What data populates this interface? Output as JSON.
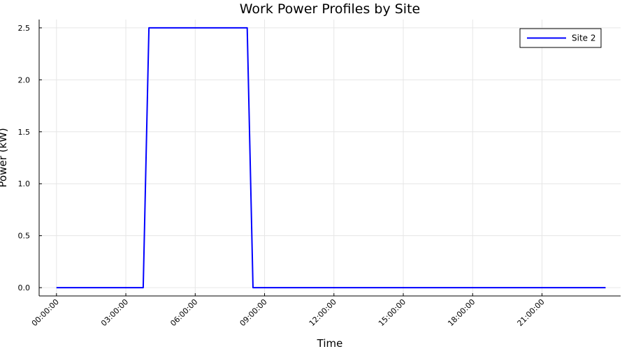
{
  "chart_data": {
    "type": "line",
    "title": "Work Power Profiles by Site",
    "xlabel": "Time",
    "ylabel": "Power (kW)",
    "xlim_hours": [
      -0.75,
      24.4
    ],
    "ylim": [
      -0.08,
      2.58
    ],
    "x_ticks": [
      {
        "hour": 0,
        "label": "00:00:00"
      },
      {
        "hour": 3,
        "label": "03:00:00"
      },
      {
        "hour": 6,
        "label": "06:00:00"
      },
      {
        "hour": 9,
        "label": "09:00:00"
      },
      {
        "hour": 12,
        "label": "12:00:00"
      },
      {
        "hour": 15,
        "label": "15:00:00"
      },
      {
        "hour": 18,
        "label": "18:00:00"
      },
      {
        "hour": 21,
        "label": "21:00:00"
      }
    ],
    "y_ticks": [
      {
        "value": 0.0,
        "label": "0.0"
      },
      {
        "value": 0.5,
        "label": "0.5"
      },
      {
        "value": 1.0,
        "label": "1.0"
      },
      {
        "value": 1.5,
        "label": "1.5"
      },
      {
        "value": 2.0,
        "label": "2.0"
      },
      {
        "value": 2.5,
        "label": "2.5"
      }
    ],
    "grid": true,
    "legend_position": "top-right",
    "series": [
      {
        "name": "Site 2",
        "color": "#0000ff",
        "points": [
          {
            "x": "00:00:00",
            "y": 0.0
          },
          {
            "x": "03:45:00",
            "y": 0.0
          },
          {
            "x": "04:00:00",
            "y": 2.5
          },
          {
            "x": "08:15:00",
            "y": 2.5
          },
          {
            "x": "08:30:00",
            "y": 0.0
          },
          {
            "x": "23:45:00",
            "y": 0.0
          }
        ]
      }
    ]
  }
}
